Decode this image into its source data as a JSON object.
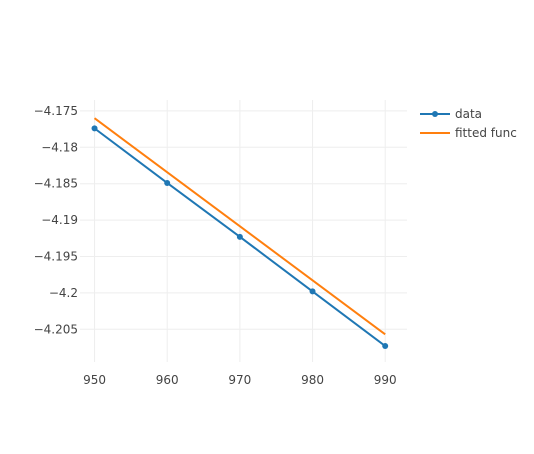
{
  "chart_data": {
    "type": "line",
    "title": "",
    "xlabel": "",
    "ylabel": "",
    "x": [
      950,
      960,
      970,
      980,
      990
    ],
    "xlim": [
      948,
      993
    ],
    "ylim": [
      -4.2095,
      -4.1735
    ],
    "x_ticks": [
      950,
      960,
      970,
      980,
      990
    ],
    "x_tick_labels": [
      "950",
      "960",
      "970",
      "980",
      "990"
    ],
    "y_ticks": [
      -4.175,
      -4.18,
      -4.185,
      -4.19,
      -4.195,
      -4.2,
      -4.205
    ],
    "y_tick_labels": [
      "−4.175",
      "−4.18",
      "−4.185",
      "−4.19",
      "−4.195",
      "−4.2",
      "−4.205"
    ],
    "grid": true,
    "legend_position": "top-right",
    "series": [
      {
        "name": "data",
        "mode": "lines+markers",
        "color": "#1f77b4",
        "x": [
          950,
          960,
          970,
          980,
          990
        ],
        "values": [
          -4.1774,
          -4.1849,
          -4.1923,
          -4.1998,
          -4.2073
        ]
      },
      {
        "name": "fitted func",
        "mode": "lines",
        "color": "#ff7f0e",
        "x": [
          950,
          990
        ],
        "values": [
          -4.176,
          -4.2057
        ]
      }
    ]
  }
}
